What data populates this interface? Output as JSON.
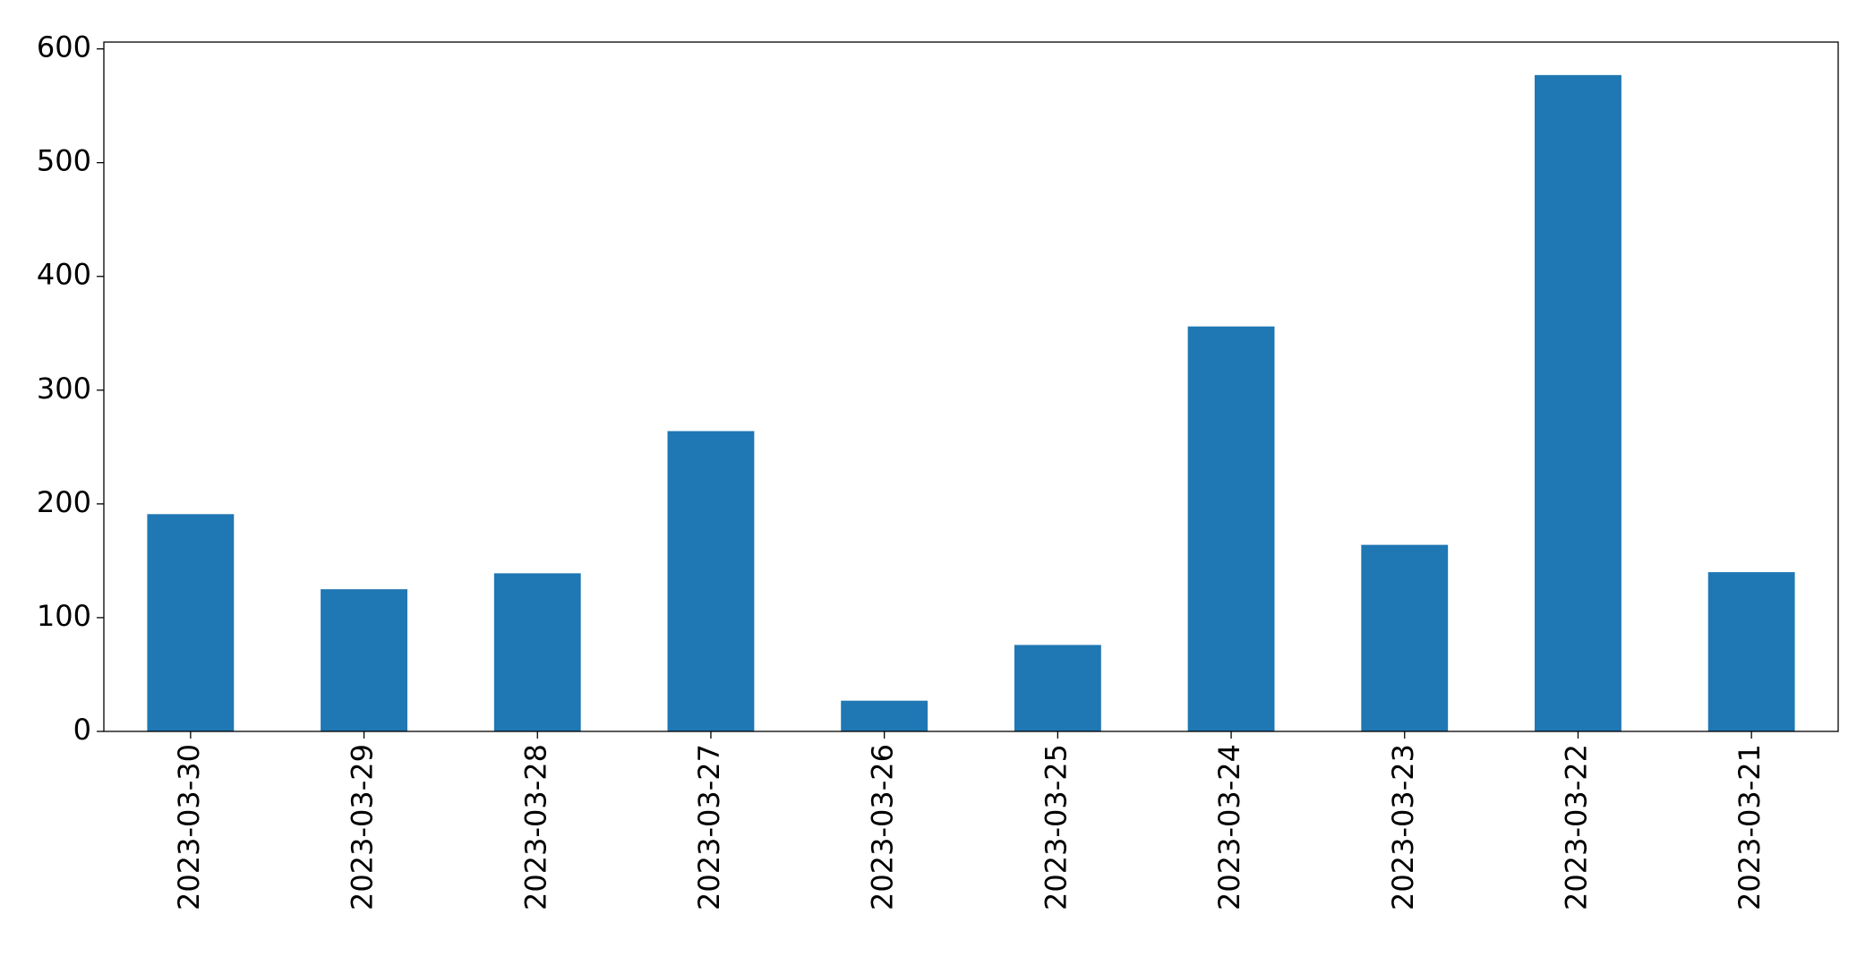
{
  "chart_data": {
    "type": "bar",
    "categories": [
      "2023-03-30",
      "2023-03-29",
      "2023-03-28",
      "2023-03-27",
      "2023-03-26",
      "2023-03-25",
      "2023-03-24",
      "2023-03-23",
      "2023-03-22",
      "2023-03-21"
    ],
    "values": [
      191,
      125,
      139,
      264,
      27,
      76,
      356,
      164,
      577,
      140
    ],
    "color": "#1f77b4",
    "ylim": [
      0,
      606
    ],
    "yticks": [
      0,
      100,
      200,
      300,
      400,
      500,
      600
    ],
    "grid": false
  }
}
